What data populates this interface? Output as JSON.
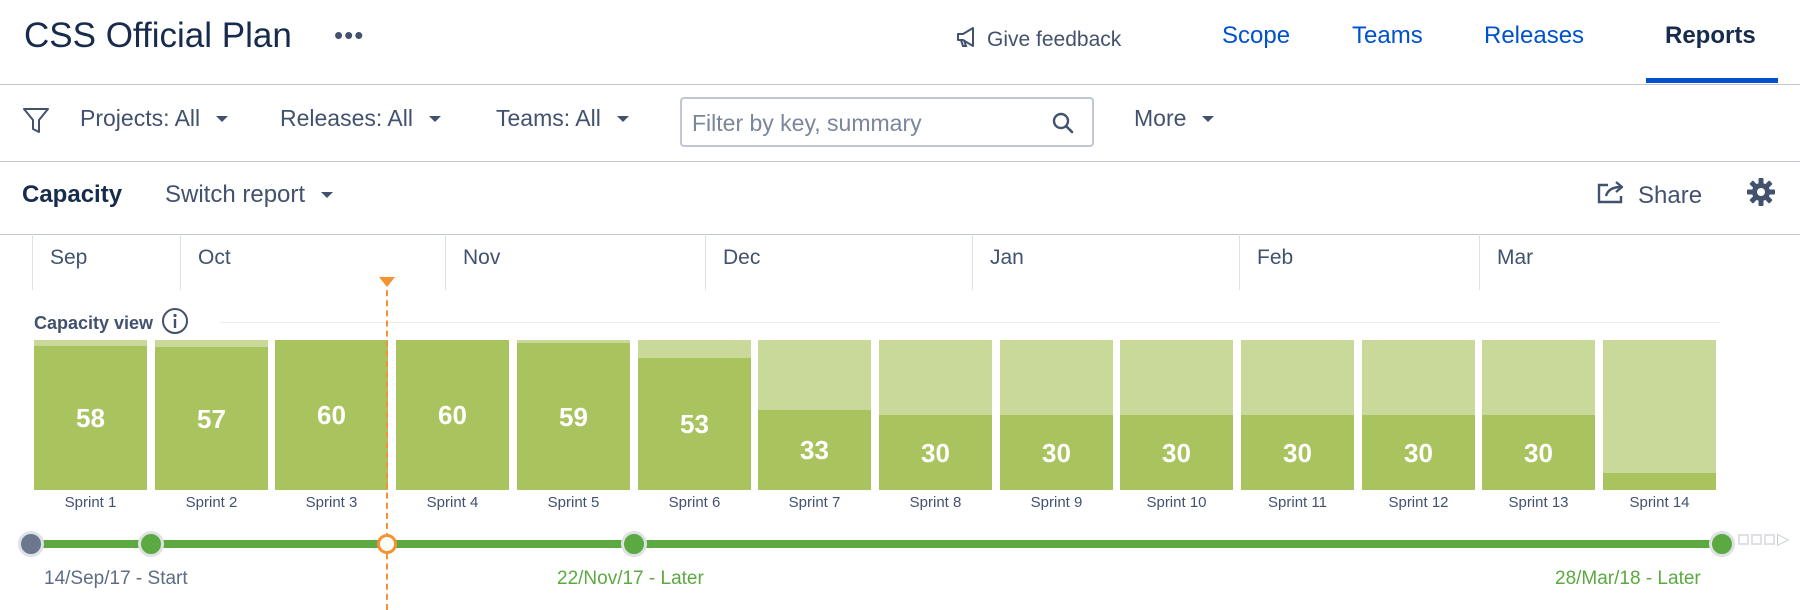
{
  "header": {
    "plan_title": "CSS Official Plan",
    "more_dots": "•••",
    "feedback_label": "Give feedback",
    "tabs": [
      {
        "label": "Scope"
      },
      {
        "label": "Teams"
      },
      {
        "label": "Releases"
      },
      {
        "label": "Reports",
        "active": true
      }
    ]
  },
  "filters": {
    "projects": "Projects: All",
    "releases": "Releases: All",
    "teams": "Teams: All",
    "search_placeholder": "Filter by key, summary",
    "more": "More"
  },
  "report": {
    "name": "Capacity",
    "switch_label": "Switch report",
    "share_label": "Share"
  },
  "timeline": {
    "months": [
      "Sep",
      "Oct",
      "Nov",
      "Dec",
      "Jan",
      "Feb",
      "Mar"
    ],
    "capacity_label": "Capacity view",
    "sprints": [
      {
        "name": "Sprint 1",
        "value": "58",
        "fill": 0.96
      },
      {
        "name": "Sprint 2",
        "value": "57",
        "fill": 0.95
      },
      {
        "name": "Sprint 3",
        "value": "60",
        "fill": 1.0
      },
      {
        "name": "Sprint 4",
        "value": "60",
        "fill": 1.0
      },
      {
        "name": "Sprint 5",
        "value": "59",
        "fill": 0.98
      },
      {
        "name": "Sprint 6",
        "value": "53",
        "fill": 0.88
      },
      {
        "name": "Sprint 7",
        "value": "33",
        "fill": 0.53
      },
      {
        "name": "Sprint 8",
        "value": "30",
        "fill": 0.5
      },
      {
        "name": "Sprint 9",
        "value": "30",
        "fill": 0.5
      },
      {
        "name": "Sprint 10",
        "value": "30",
        "fill": 0.5
      },
      {
        "name": "Sprint 11",
        "value": "30",
        "fill": 0.5
      },
      {
        "name": "Sprint 12",
        "value": "30",
        "fill": 0.5
      },
      {
        "name": "Sprint 13",
        "value": "30",
        "fill": 0.5
      },
      {
        "name": "Sprint 14",
        "value": "",
        "fill": 0.11
      }
    ],
    "releases": [
      {
        "label": "14/Sep/17 - Start",
        "color": "#5e6c84"
      },
      {
        "label": "22/Nov/17 - Later",
        "color": "#5ba940"
      },
      {
        "label": "28/Mar/18 - Later",
        "color": "#5ba940"
      }
    ]
  },
  "colors": {
    "accent": "#0052cc",
    "capacity_used": "#a9c45e",
    "capacity_total": "#c8d99a",
    "today": "#f79232",
    "release_track": "#5ba940"
  }
}
